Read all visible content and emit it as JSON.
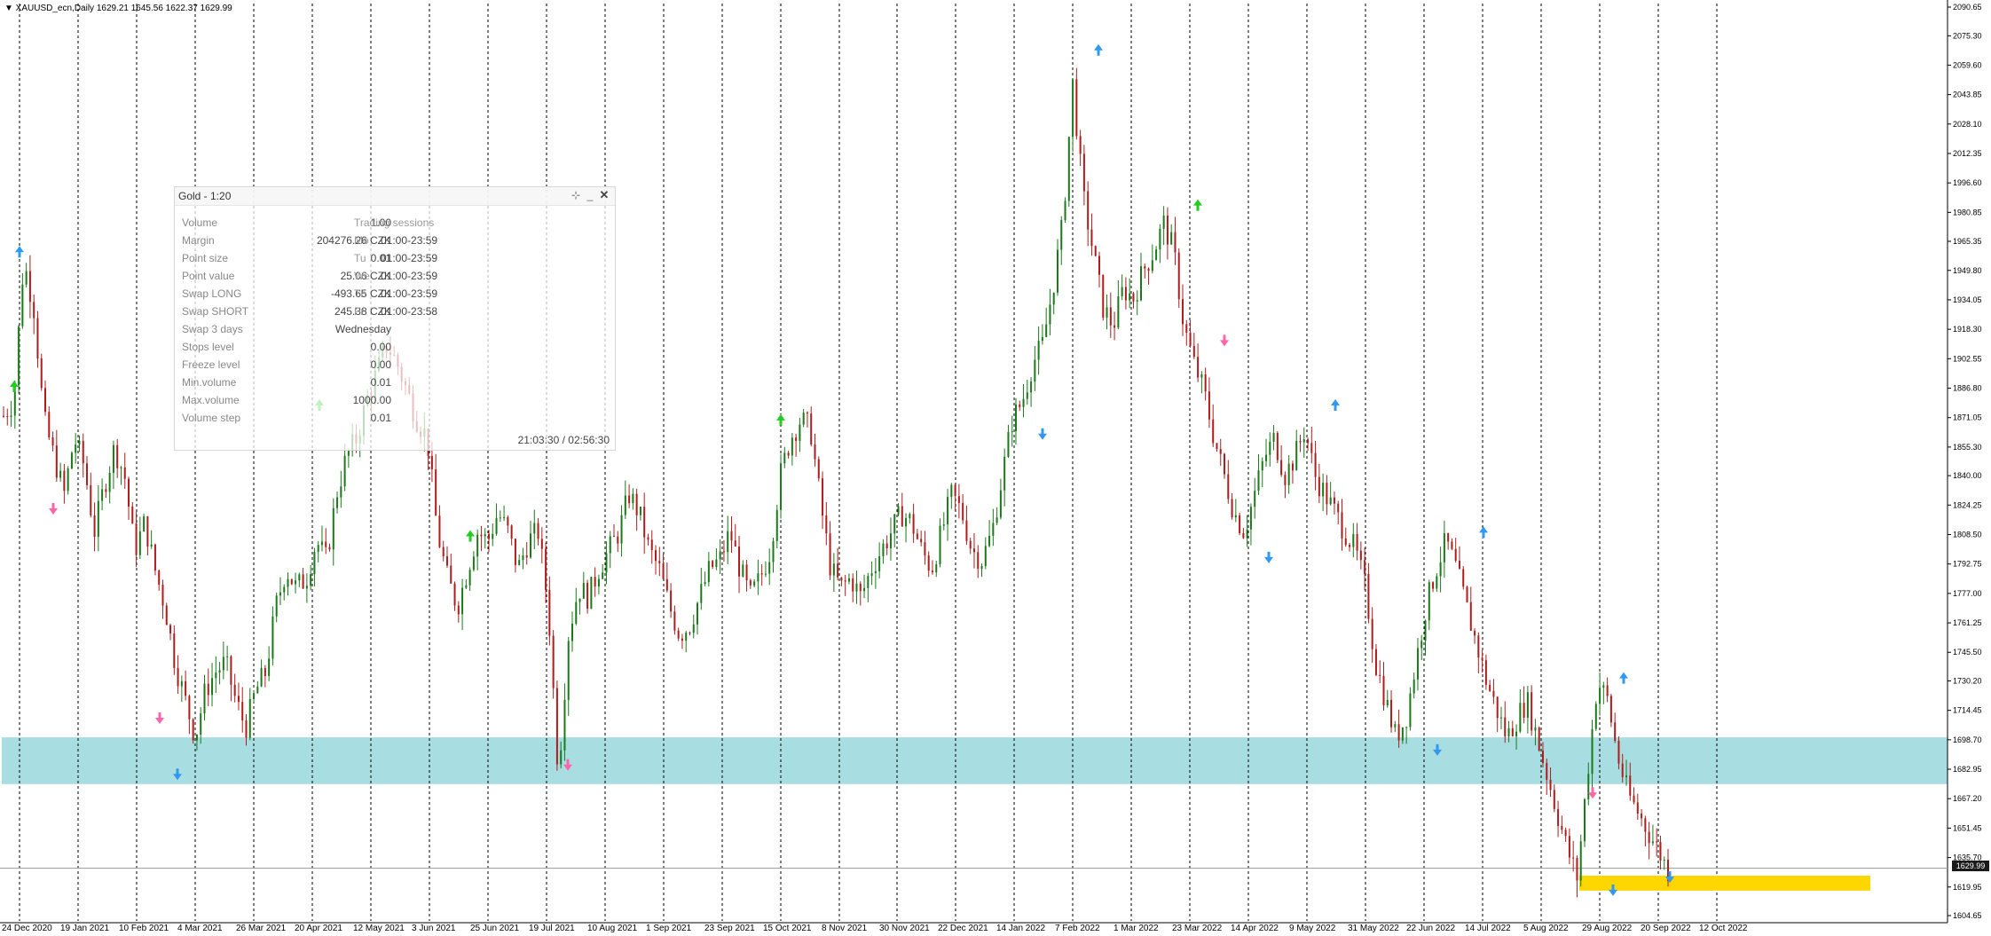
{
  "chart": {
    "title": "▼ XAUUSD_ecn,Daily  1629.21 1645.56 1622.37 1629.99",
    "current_price": "1629.99",
    "colors": {
      "bull": "#1a7a1a",
      "bear": "#b01c1c",
      "support_zone": "#a8dde2",
      "target_zone": "#ffd700",
      "up_arrow_green": "#22cc22",
      "down_arrow_pink": "#ff66aa",
      "fractal_blue": "#3399ee",
      "grid": "#000000"
    },
    "price_axis": [
      "2090.65",
      "2075.30",
      "2059.60",
      "2043.85",
      "2028.10",
      "2012.35",
      "1996.60",
      "1980.85",
      "1965.35",
      "1949.80",
      "1934.05",
      "1918.30",
      "1902.55",
      "1886.80",
      "1871.05",
      "1855.30",
      "1840.00",
      "1824.25",
      "1808.50",
      "1792.75",
      "1777.00",
      "1761.25",
      "1745.50",
      "1730.20",
      "1714.45",
      "1698.70",
      "1682.95",
      "1667.20",
      "1651.45",
      "1635.70",
      "1619.95",
      "1604.65"
    ],
    "time_axis": [
      "24 Dec 2020",
      "19 Jan 2021",
      "10 Feb 2021",
      "4 Mar 2021",
      "26 Mar 2021",
      "20 Apr 2021",
      "12 May 2021",
      "3 Jun 2021",
      "25 Jun 2021",
      "19 Jul 2021",
      "10 Aug 2021",
      "1 Sep 2021",
      "23 Sep 2021",
      "15 Oct 2021",
      "8 Nov 2021",
      "30 Nov 2021",
      "22 Dec 2021",
      "14 Jan 2022",
      "7 Feb 2022",
      "1 Mar 2022",
      "23 Mar 2022",
      "14 Apr 2022",
      "9 May 2022",
      "31 May 2022",
      "22 Jun 2022",
      "14 Jul 2022",
      "5 Aug 2022",
      "29 Aug 2022",
      "20 Sep 2022",
      "12 Oct 2022"
    ],
    "support_zone_range": [
      1675,
      1700
    ],
    "target_zone_range": [
      1618,
      1626
    ],
    "closes": [
      1872,
      1880,
      1955,
      1930,
      1870,
      1850,
      1830,
      1860,
      1845,
      1810,
      1835,
      1855,
      1840,
      1800,
      1815,
      1790,
      1770,
      1740,
      1720,
      1700,
      1725,
      1735,
      1740,
      1720,
      1705,
      1725,
      1735,
      1770,
      1790,
      1780,
      1785,
      1805,
      1795,
      1830,
      1850,
      1860,
      1880,
      1895,
      1910,
      1900,
      1885,
      1870,
      1860,
      1810,
      1785,
      1770,
      1790,
      1810,
      1805,
      1820,
      1810,
      1790,
      1805,
      1810,
      1770,
      1680,
      1755,
      1780,
      1775,
      1790,
      1800,
      1810,
      1830,
      1820,
      1800,
      1790,
      1770,
      1755,
      1760,
      1775,
      1790,
      1795,
      1810,
      1790,
      1775,
      1785,
      1800,
      1840,
      1860,
      1870,
      1865,
      1825,
      1790,
      1780,
      1785,
      1775,
      1790,
      1800,
      1810,
      1820,
      1815,
      1800,
      1790,
      1810,
      1830,
      1820,
      1800,
      1795,
      1810,
      1840,
      1870,
      1880,
      1900,
      1910,
      1940,
      1975,
      2050,
      1990,
      1960,
      1930,
      1920,
      1940,
      1935,
      1950,
      1960,
      1975,
      1960,
      1920,
      1900,
      1885,
      1860,
      1840,
      1820,
      1810,
      1830,
      1850,
      1860,
      1840,
      1850,
      1865,
      1840,
      1830,
      1820,
      1810,
      1800,
      1780,
      1740,
      1720,
      1700,
      1710,
      1740,
      1770,
      1790,
      1805,
      1790,
      1770,
      1750,
      1730,
      1715,
      1700,
      1710,
      1720,
      1700,
      1680,
      1660,
      1640,
      1625,
      1680,
      1730,
      1720,
      1690,
      1670,
      1660,
      1650,
      1640,
      1629
    ]
  },
  "spec_panel": {
    "title": "Gold - 1:20",
    "move_icon": "⊹",
    "min_icon": "_",
    "close_icon": "✕",
    "rows": [
      {
        "label": "Volume",
        "value": "1.00"
      },
      {
        "label": "Margin",
        "value": "204276.26 CZK"
      },
      {
        "label": "Point size",
        "value": "0.01"
      },
      {
        "label": "Point value",
        "value": "25.06 CZK"
      },
      {
        "label": "Swap LONG",
        "value": "-493.65 CZK"
      },
      {
        "label": "Swap SHORT",
        "value": "245.38 CZK"
      },
      {
        "label": "Swap 3 days",
        "value": "Wednesday"
      },
      {
        "label": "Stops level",
        "value": "0.00"
      },
      {
        "label": "Freeze level",
        "value": "0.00"
      },
      {
        "label": "Min.volume",
        "value": "0.01"
      },
      {
        "label": "Max.volume",
        "value": "1000.00"
      },
      {
        "label": "Volume step",
        "value": "0.01"
      }
    ],
    "sessions_title": "Trading sessions",
    "sessions": [
      {
        "day": "Mo",
        "time": "01:00-23:59"
      },
      {
        "day": "Tu",
        "time": "01:00-23:59"
      },
      {
        "day": "We",
        "time": "01:00-23:59"
      },
      {
        "day": "Th",
        "time": "01:00-23:59"
      },
      {
        "day": "Fr",
        "time": "01:00-23:58"
      }
    ],
    "footer": "21:03:30 / 02:56:30"
  }
}
